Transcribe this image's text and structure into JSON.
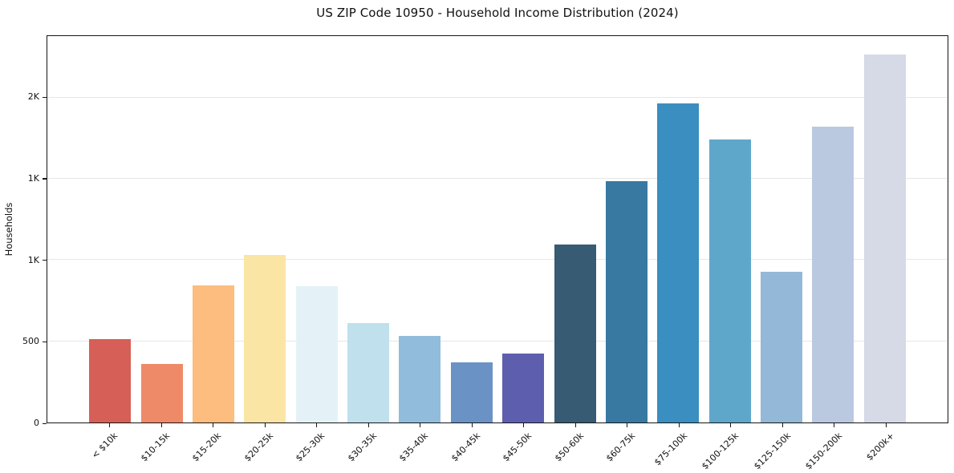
{
  "chart_data": {
    "type": "bar",
    "title": "US ZIP Code 10950 - Household Income Distribution (2024)",
    "xlabel": "",
    "ylabel": "Households",
    "categories": [
      "< $10k",
      "$10-15k",
      "$15-20k",
      "$20-25k",
      "$25-30k",
      "$30-35k",
      "$35-40k",
      "$40-45k",
      "$45-50k",
      "$50-60k",
      "$60-75k",
      "$75-100k",
      "$100-125k",
      "$125-150k",
      "$150-200k",
      "$200k+"
    ],
    "values": [
      515,
      360,
      845,
      1030,
      840,
      610,
      535,
      370,
      425,
      1095,
      1485,
      1965,
      1745,
      930,
      1820,
      2265
    ],
    "bar_colors": [
      "#d65f57",
      "#ef8a68",
      "#fcbd7e",
      "#fbe5a4",
      "#e4f2f7",
      "#bfe0ec",
      "#92bcdb",
      "#6b92c4",
      "#5d5fae",
      "#365b72",
      "#3779a0",
      "#3a8ec0",
      "#5fa7ca",
      "#94b8d7",
      "#bac9e0",
      "#d6d9e6"
    ],
    "ylim": [
      0,
      2380
    ],
    "yticks": {
      "values": [
        0,
        500,
        1000,
        1500,
        2000
      ],
      "labels": [
        "0",
        "500",
        "1K",
        "1K",
        "2K"
      ]
    },
    "grid": true,
    "gridline_color": "#e7e7e7",
    "axis_color": "#161616",
    "background": "#ffffff",
    "legend_position": "none",
    "x_tick_rotation_deg": 45
  }
}
